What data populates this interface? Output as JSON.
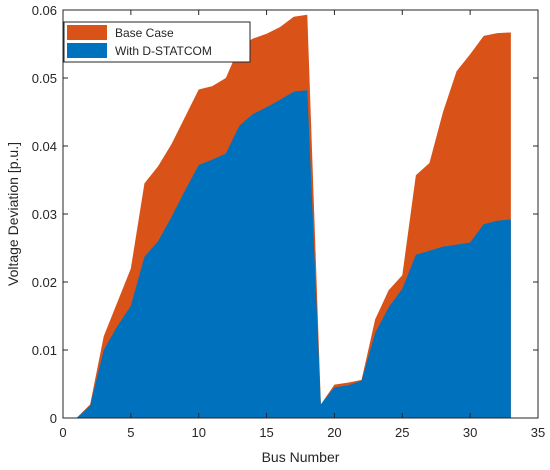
{
  "chart_data": {
    "type": "area",
    "xlabel": "Bus Number",
    "ylabel": "Voltage Deviation [p.u.]",
    "xlim": [
      0,
      35
    ],
    "ylim": [
      0,
      0.06
    ],
    "xticks": [
      0,
      5,
      10,
      15,
      20,
      25,
      30,
      35
    ],
    "yticks": [
      0,
      0.01,
      0.02,
      0.03,
      0.04,
      0.05,
      0.06
    ],
    "grid": false,
    "legend_position": "top-left",
    "x": [
      1,
      2,
      3,
      4,
      5,
      6,
      7,
      8,
      9,
      10,
      11,
      12,
      13,
      14,
      15,
      16,
      17,
      18,
      19,
      20,
      21,
      22,
      23,
      24,
      25,
      26,
      27,
      28,
      29,
      30,
      31,
      32,
      33
    ],
    "series": [
      {
        "name": "Base Case",
        "color": "#d95319",
        "values": [
          0.0,
          0.002,
          0.012,
          0.017,
          0.022,
          0.0345,
          0.037,
          0.0403,
          0.0443,
          0.0483,
          0.0488,
          0.05,
          0.0546,
          0.0558,
          0.0565,
          0.0575,
          0.059,
          0.0593,
          0.002,
          0.0049,
          0.0052,
          0.0056,
          0.0145,
          0.0188,
          0.021,
          0.0357,
          0.0375,
          0.045,
          0.051,
          0.0535,
          0.0562,
          0.0566,
          0.0567
        ]
      },
      {
        "name": "With D-STATCOM",
        "color": "#0072bd",
        "values": [
          0.0,
          0.0018,
          0.01,
          0.0135,
          0.0165,
          0.0237,
          0.026,
          0.0296,
          0.0335,
          0.0372,
          0.038,
          0.0389,
          0.043,
          0.0447,
          0.0457,
          0.0468,
          0.048,
          0.0482,
          0.002,
          0.0045,
          0.0048,
          0.0055,
          0.0125,
          0.0163,
          0.019,
          0.024,
          0.0246,
          0.0252,
          0.0255,
          0.0258,
          0.0285,
          0.029,
          0.0292
        ]
      }
    ]
  }
}
